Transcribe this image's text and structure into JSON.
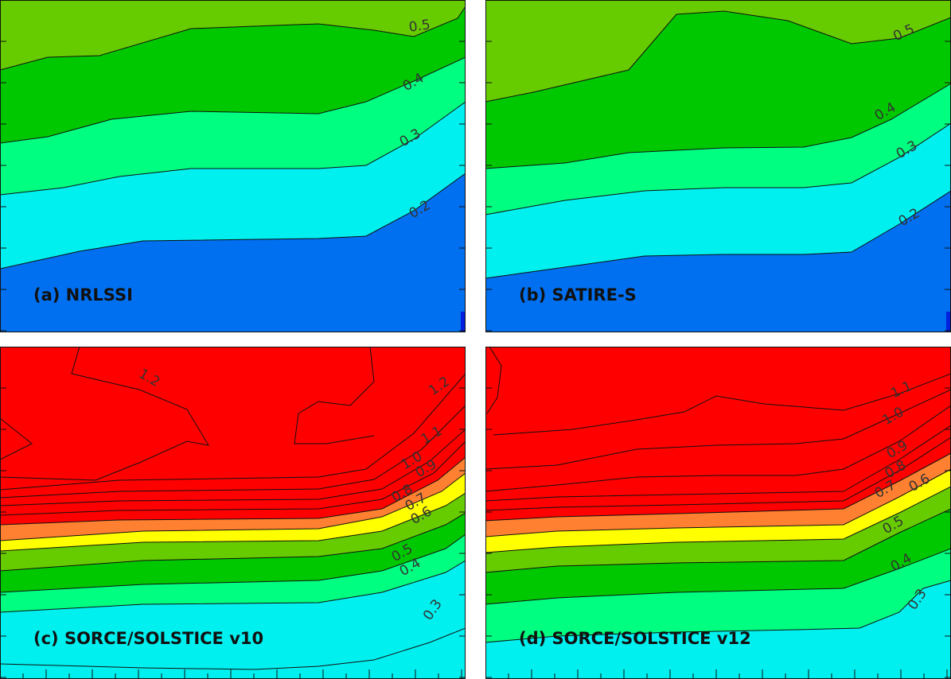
{
  "chart_data": [
    {
      "type": "contour",
      "title": "(a) NRLSSI",
      "level_colors": [
        "#0070f0",
        "#00f0f0",
        "#00ff80",
        "#00c800",
        "#66cc00"
      ],
      "levels": [
        0.2,
        0.3,
        0.4,
        0.5
      ],
      "contour_labels": [
        "0.5",
        "0.4",
        "0.3",
        "0.2"
      ]
    },
    {
      "type": "contour",
      "title": "(b) SATIRE-S",
      "level_colors": [
        "#0070f0",
        "#00f0f0",
        "#00ff80",
        "#00c800",
        "#66cc00"
      ],
      "levels": [
        0.2,
        0.3,
        0.4,
        0.5
      ],
      "contour_labels": [
        "0.5",
        "0.4",
        "0.3",
        "0.2"
      ]
    },
    {
      "type": "contour",
      "title": "(c) SORCE/SOLSTICE v10",
      "level_colors": [
        "#00f0f0",
        "#00ff80",
        "#00c800",
        "#66cc00",
        "#ffff00",
        "#ff8030",
        "#ff0000"
      ],
      "levels": [
        0.3,
        0.4,
        0.5,
        0.6,
        0.7,
        0.8,
        0.9,
        1.0,
        1.1,
        1.2
      ],
      "contour_labels": [
        "1.2",
        "1.2",
        "1.1",
        "1.0",
        "0.9",
        "0.8",
        "0.7",
        "0.6",
        "0.5",
        "0.4",
        "0.3"
      ]
    },
    {
      "type": "contour",
      "title": "(d) SORCE/SOLSTICE v12",
      "level_colors": [
        "#00f0f0",
        "#00ff80",
        "#00c800",
        "#66cc00",
        "#ffff00",
        "#ff8030",
        "#ff0000"
      ],
      "levels": [
        0.3,
        0.4,
        0.5,
        0.6,
        0.7,
        0.8,
        0.9,
        1.0,
        1.1
      ],
      "contour_labels": [
        "1.1",
        "1.0",
        "0.9",
        "0.8",
        "0.7",
        "0.6",
        "0.5",
        "0.4",
        "0.3"
      ]
    }
  ]
}
